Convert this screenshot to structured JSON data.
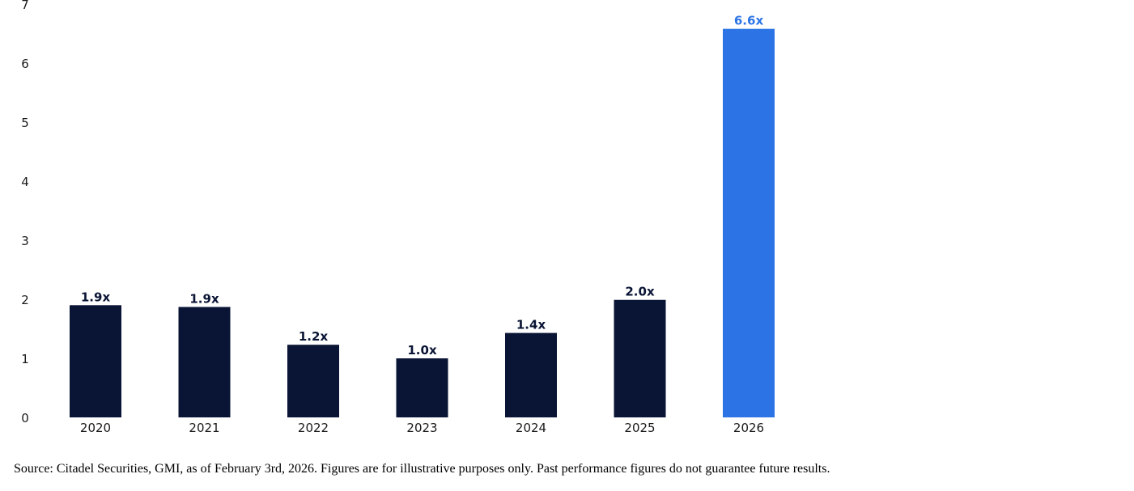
{
  "chart_data": {
    "type": "bar",
    "categories": [
      "2020",
      "2021",
      "2022",
      "2023",
      "2024",
      "2025",
      "2026"
    ],
    "values": [
      1.9,
      1.87,
      1.23,
      1.0,
      1.43,
      1.99,
      6.58
    ],
    "data_labels": [
      "1.9x",
      "1.9x",
      "1.2x",
      "1.0x",
      "1.4x",
      "2.0x",
      "6.6x"
    ],
    "bar_colors": [
      "#0a1434",
      "#0a1434",
      "#0a1434",
      "#0a1434",
      "#0a1434",
      "#0a1434",
      "#2c74e6"
    ],
    "label_colors": [
      "#0a1434",
      "#0a1434",
      "#0a1434",
      "#0a1434",
      "#0a1434",
      "#0a1434",
      "#2c74e6"
    ],
    "ylim": [
      0,
      7
    ],
    "yticks": [
      "0",
      "1",
      "2",
      "3",
      "4",
      "5",
      "6",
      "7"
    ],
    "grid": false,
    "title": "",
    "xlabel": "",
    "ylabel": ""
  },
  "footer": {
    "source_text": "Source: Citadel Securities, GMI, as of February 3rd, 2026. Figures are for illustrative purposes only. Past performance figures do not guarantee future results."
  }
}
